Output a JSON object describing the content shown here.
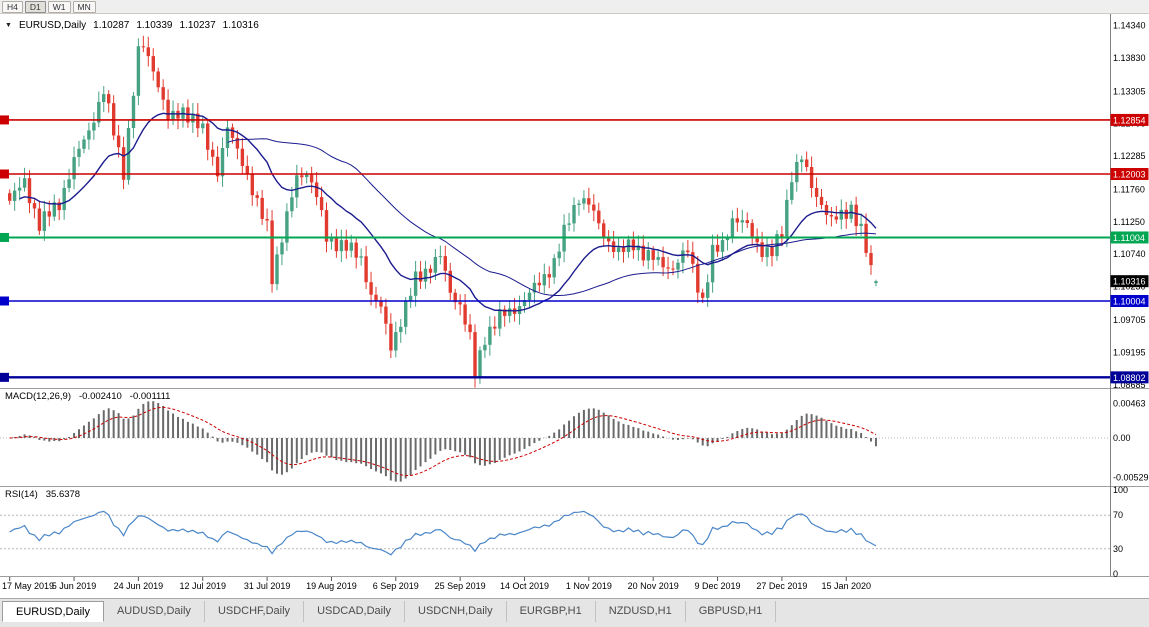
{
  "toolbar": {
    "buttons": [
      {
        "label": "H4",
        "active": false
      },
      {
        "label": "D1",
        "active": true
      },
      {
        "label": "W1",
        "active": false
      },
      {
        "label": "MN",
        "active": false
      }
    ]
  },
  "chart_header": {
    "symbol": "EURUSD,Daily",
    "open": "1.10287",
    "high": "1.10339",
    "low": "1.10237",
    "close": "1.10316"
  },
  "macd_panel": {
    "label": "MACD(12,26,9)",
    "main_value": "-0.002410",
    "signal_value": "-0.001111",
    "axis": [
      "0.00463",
      "0.00",
      "-0.00529"
    ]
  },
  "rsi_panel": {
    "label": "RSI(14)",
    "value": "35.6378",
    "axis": [
      "100",
      "70",
      "30",
      "0"
    ],
    "guides": [
      70,
      30
    ]
  },
  "current_price_tag": {
    "label": "1.10316",
    "bg": "#000000"
  },
  "tabs": [
    {
      "label": "EURUSD,Daily",
      "active": true
    },
    {
      "label": "AUDUSD,Daily",
      "active": false
    },
    {
      "label": "USDCHF,Daily",
      "active": false
    },
    {
      "label": "USDCAD,Daily",
      "active": false
    },
    {
      "label": "USDCNH,Daily",
      "active": false
    },
    {
      "label": "EURGBP,H1",
      "active": false
    },
    {
      "label": "NZDUSD,H1",
      "active": false
    },
    {
      "label": "GBPUSD,H1",
      "active": false
    }
  ],
  "chart_data": {
    "type": "candlestick",
    "symbol": "EURUSD",
    "timeframe": "Daily",
    "current_ohlc": {
      "open": 1.10287,
      "high": 1.10339,
      "low": 1.10237,
      "close": 1.10316
    },
    "num_candles": 176,
    "last_close": 1.10316,
    "y_tick_labels": [
      "1.14340",
      "1.13830",
      "1.13305",
      "1.12795",
      "1.12285",
      "1.11760",
      "1.11250",
      "1.10740",
      "1.10230",
      "1.09705",
      "1.09195",
      "1.08685"
    ],
    "x_tick_labels": [
      "17 May 2019",
      "5 Jun 2019",
      "24 Jun 2019",
      "12 Jul 2019",
      "31 Jul 2019",
      "19 Aug 2019",
      "6 Sep 2019",
      "25 Sep 2019",
      "14 Oct 2019",
      "1 Nov 2019",
      "20 Nov 2019",
      "9 Dec 2019",
      "27 Dec 2019",
      "15 Jan 2020"
    ],
    "x_tick_interval": 13,
    "levels": [
      {
        "price": 1.12854,
        "label": "1.12854",
        "color": "#cc0000",
        "width": 1.6
      },
      {
        "price": 1.12003,
        "label": "1.12003",
        "color": "#cc0000",
        "width": 1.6
      },
      {
        "price": 1.11004,
        "label": "1.11004",
        "color": "#00a651",
        "width": 2.0
      },
      {
        "price": 1.10004,
        "label": "1.10004",
        "color": "#0000cc",
        "width": 1.6
      },
      {
        "price": 1.08802,
        "label": "1.08802",
        "color": "#000099",
        "width": 2.4
      }
    ],
    "indicators": {
      "macd": {
        "fast": 12,
        "slow": 26,
        "signal": 9,
        "main_reading": -0.00241,
        "signal_reading": -0.001111,
        "axis_values": [
          0.00463,
          0,
          -0.00529
        ]
      },
      "rsi": {
        "period": 14,
        "reading": 35.6378,
        "guides": [
          70,
          30
        ]
      },
      "moving_averages": [
        {
          "period": 20
        },
        {
          "period": 45
        }
      ]
    },
    "colors": {
      "up": "#46a283",
      "down": "#e13b30",
      "ma": "#1c1c8f",
      "macd_hist": "#6a6a6a",
      "macd_signal": "#cc0000",
      "rsi": "#4a86c8",
      "guide": "#b8b8b8",
      "separator": "#9e9e9e"
    },
    "anchors": [
      [
        0,
        1.1158
      ],
      [
        3,
        1.1188
      ],
      [
        6,
        1.112
      ],
      [
        10,
        1.1155
      ],
      [
        13,
        1.122
      ],
      [
        16,
        1.127
      ],
      [
        19,
        1.133
      ],
      [
        23,
        1.1205
      ],
      [
        26,
        1.139
      ],
      [
        27,
        1.1402
      ],
      [
        29,
        1.1368
      ],
      [
        32,
        1.1285
      ],
      [
        35,
        1.1302
      ],
      [
        39,
        1.1268
      ],
      [
        42,
        1.1205
      ],
      [
        44,
        1.127
      ],
      [
        47,
        1.1222
      ],
      [
        50,
        1.115
      ],
      [
        52,
        1.1118
      ],
      [
        53,
        1.104
      ],
      [
        55,
        1.11
      ],
      [
        58,
        1.1195
      ],
      [
        60,
        1.1205
      ],
      [
        62,
        1.1165
      ],
      [
        64,
        1.11
      ],
      [
        68,
        1.1085
      ],
      [
        71,
        1.1068
      ],
      [
        73,
        1.101
      ],
      [
        75,
        1.0988
      ],
      [
        77,
        1.093
      ],
      [
        80,
        1.099
      ],
      [
        82,
        1.1035
      ],
      [
        85,
        1.1055
      ],
      [
        87,
        1.107
      ],
      [
        89,
        1.1015
      ],
      [
        91,
        1.0995
      ],
      [
        93,
        1.094
      ],
      [
        94,
        1.0885
      ],
      [
        96,
        1.0945
      ],
      [
        99,
        1.0975
      ],
      [
        102,
        1.0988
      ],
      [
        104,
        1.1002
      ],
      [
        107,
        1.103
      ],
      [
        110,
        1.106
      ],
      [
        113,
        1.113
      ],
      [
        115,
        1.1165
      ],
      [
        117,
        1.1152
      ],
      [
        120,
        1.1105
      ],
      [
        123,
        1.1075
      ],
      [
        126,
        1.1092
      ],
      [
        128,
        1.1075
      ],
      [
        131,
        1.1062
      ],
      [
        134,
        1.1052
      ],
      [
        137,
        1.108
      ],
      [
        140,
        1.1
      ],
      [
        142,
        1.1075
      ],
      [
        144,
        1.109
      ],
      [
        146,
        1.113
      ],
      [
        149,
        1.1118
      ],
      [
        152,
        1.108
      ],
      [
        154,
        1.1075
      ],
      [
        156,
        1.111
      ],
      [
        158,
        1.12
      ],
      [
        160,
        1.1225
      ],
      [
        162,
        1.118
      ],
      [
        164,
        1.1155
      ],
      [
        166,
        1.1125
      ],
      [
        168,
        1.1135
      ],
      [
        170,
        1.1148
      ],
      [
        172,
        1.111
      ],
      [
        174,
        1.1048
      ],
      [
        175,
        1.10316
      ]
    ]
  }
}
